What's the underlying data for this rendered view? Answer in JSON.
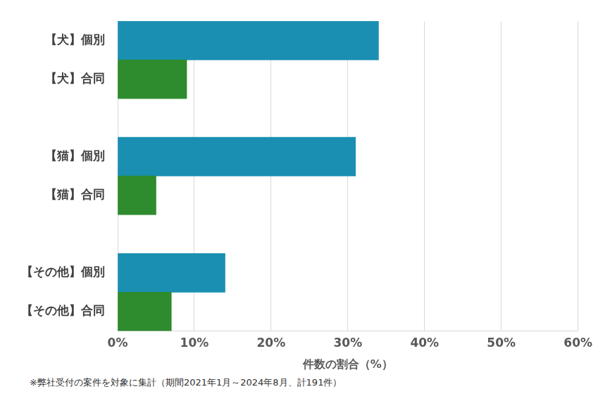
{
  "chart_data": {
    "type": "bar",
    "orientation": "horizontal",
    "categories": [
      "【犬】個別",
      "【犬】合同",
      null,
      "【猫】個別",
      "【猫】合同",
      null,
      "【その他】個別",
      "【その他】合同"
    ],
    "values": [
      34,
      9,
      null,
      31,
      5,
      null,
      14,
      7
    ],
    "colors": [
      "#1a8fb2",
      "#2e8b2e",
      null,
      "#1a8fb2",
      "#2e8b2e",
      null,
      "#1a8fb2",
      "#2e8b2e"
    ],
    "xlabel": "件数の割合（%）",
    "xlim": [
      0,
      60
    ],
    "xticks": [
      {
        "value": 0,
        "label": "0%"
      },
      {
        "value": 10,
        "label": "10%"
      },
      {
        "value": 20,
        "label": "20%"
      },
      {
        "value": 30,
        "label": "30%"
      },
      {
        "value": 40,
        "label": "40%"
      },
      {
        "value": 50,
        "label": "50%"
      },
      {
        "value": 60,
        "label": "60%"
      }
    ],
    "grid": true,
    "annotation": "※弊社受付の案件を対象に集計（期間2021年1月～2024年8月、計191件）"
  }
}
